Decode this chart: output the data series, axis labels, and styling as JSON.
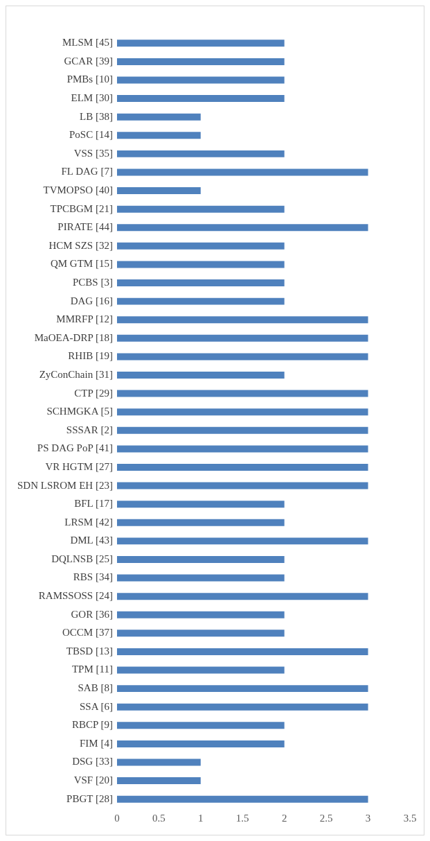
{
  "chart_data": {
    "type": "bar",
    "orientation": "horizontal",
    "color": "#4f81bd",
    "categories": [
      "MLSM [45]",
      "GCAR [39]",
      "PMBs [10]",
      "ELM [30]",
      "LB [38]",
      "PoSC [14]",
      "VSS [35]",
      "FL DAG [7]",
      "TVMOPSO [40]",
      "TPCBGM [21]",
      "PIRATE [44]",
      "HCM SZS [32]",
      "QM GTM [15]",
      "PCBS [3]",
      "DAG [16]",
      "MMRFP [12]",
      "MaOEA-DRP [18]",
      "RHIB [19]",
      "ZyConChain [31]",
      "CTP [29]",
      "SCHMGKA [5]",
      "SSSAR [2]",
      "PS DAG PoP [41]",
      "VR HGTM [27]",
      "SDN LSROM EH [23]",
      "BFL [17]",
      "LRSM [42]",
      "DML [43]",
      "DQLNSB [25]",
      "RBS [34]",
      "RAMSSOSS [24]",
      "GOR [36]",
      "OCCM [37]",
      "TBSD [13]",
      "TPM [11]",
      "SAB [8]",
      "SSA [6]",
      "RBCP [9]",
      "FIM [4]",
      "DSG [33]",
      "VSF [20]",
      "PBGT [28]"
    ],
    "values": [
      2,
      2,
      2,
      2,
      1,
      1,
      2,
      3,
      1,
      2,
      3,
      2,
      2,
      2,
      2,
      3,
      3,
      3,
      2,
      3,
      3,
      3,
      3,
      3,
      3,
      2,
      2,
      3,
      2,
      2,
      3,
      2,
      2,
      3,
      2,
      3,
      3,
      2,
      2,
      1,
      1,
      3
    ],
    "xlim": [
      0,
      3.5
    ],
    "xticks": [
      0,
      0.5,
      1,
      1.5,
      2,
      2.5,
      3,
      3.5
    ],
    "grid": false,
    "legend": false
  }
}
